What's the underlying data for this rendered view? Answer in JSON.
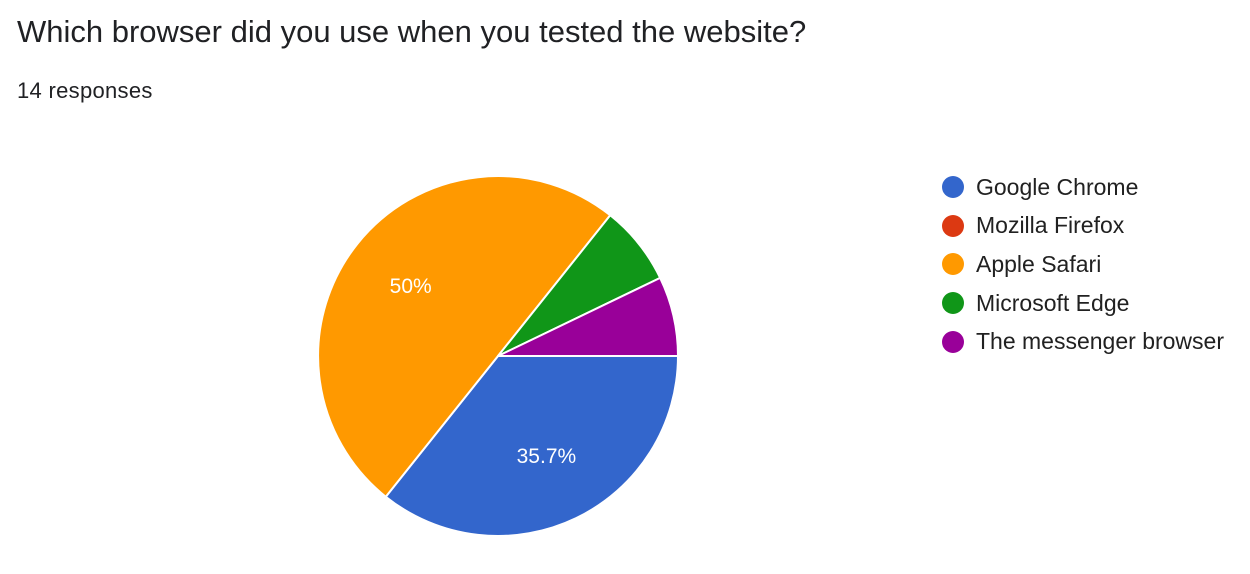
{
  "question": {
    "title": "Which browser did you use when you tested the website?",
    "response_count": "14 responses"
  },
  "chart_data": {
    "type": "pie",
    "total_responses": 14,
    "slices": [
      {
        "label": "Google Chrome",
        "count": 5,
        "percent_label": "35.7%",
        "color": "#3366cc"
      },
      {
        "label": "Mozilla Firefox",
        "count": 0,
        "percent_label": "",
        "color": "#dc3912"
      },
      {
        "label": "Apple Safari",
        "count": 7,
        "percent_label": "50%",
        "color": "#ff9900"
      },
      {
        "label": "Microsoft Edge",
        "count": 1,
        "percent_label": "",
        "color": "#109618"
      },
      {
        "label": "The messenger browser",
        "count": 1,
        "percent_label": "",
        "color": "#990099"
      }
    ],
    "legend_position": "right"
  }
}
